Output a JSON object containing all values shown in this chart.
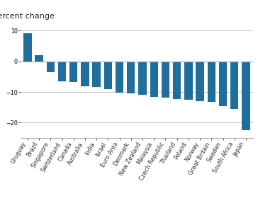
{
  "categories": [
    "Uruguay",
    "Brazil",
    "Singapore",
    "Switzerland",
    "Canada",
    "Australia",
    "India",
    "Israel",
    "Euro Area",
    "Denmark",
    "New Zealand",
    "Malaysia",
    "Czech Republic",
    "Thailand",
    "Poland",
    "Norway",
    "Great Britain",
    "Sweden",
    "South Africa",
    "Japan"
  ],
  "values": [
    9.2,
    2.0,
    -3.5,
    -6.5,
    -6.8,
    -8.2,
    -8.5,
    -9.0,
    -10.2,
    -10.5,
    -11.0,
    -11.5,
    -11.8,
    -12.2,
    -12.5,
    -13.0,
    -13.2,
    -14.5,
    -15.5,
    -22.5
  ],
  "bar_color": "#1f6e9c",
  "title_label": "Percent change",
  "ylim": [
    -25,
    12
  ],
  "yticks": [
    -20,
    -10,
    0,
    10
  ],
  "background_color": "#ffffff",
  "spine_color": "#aaaaaa",
  "label_fontsize": 5.8,
  "title_fontsize": 8.0
}
